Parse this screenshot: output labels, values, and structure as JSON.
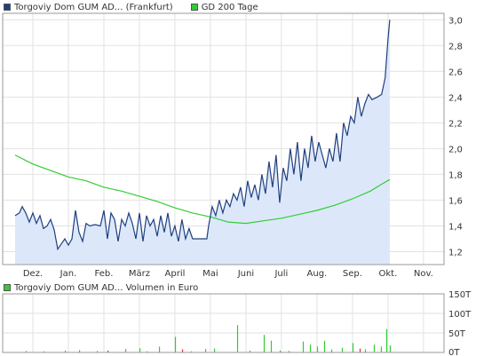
{
  "chart_data": [
    {
      "type": "area",
      "legend": [
        {
          "label": "Torgoviy Dom GUM AD... (Frankfurt)",
          "color": "#1f3f7f"
        },
        {
          "label": "GD 200 Tage",
          "color": "#33cc33"
        }
      ],
      "x_ticks": [
        "Dez.",
        "Jan.",
        "Feb.",
        "März",
        "April",
        "Mai",
        "Juni",
        "Juli",
        "Aug.",
        "Sep.",
        "Okt.",
        "Nov."
      ],
      "y_ticks": [
        "3,0",
        "2,8",
        "2,6",
        "2,4",
        "2,2",
        "2,0",
        "1,8",
        "1,6",
        "1,4",
        "1,2"
      ],
      "ylim": [
        1.1,
        3.05
      ],
      "grid": true,
      "price_color": "#1f3f7f",
      "fill_color": "#dce8fa",
      "avg_color": "#33cc33",
      "series": [
        {
          "name": "Torgoviy Dom GUM AD... (Frankfurt)",
          "points": [
            [
              0,
              1.48
            ],
            [
              0.12,
              1.5
            ],
            [
              0.2,
              1.55
            ],
            [
              0.3,
              1.5
            ],
            [
              0.4,
              1.43
            ],
            [
              0.5,
              1.5
            ],
            [
              0.6,
              1.42
            ],
            [
              0.7,
              1.48
            ],
            [
              0.8,
              1.38
            ],
            [
              0.9,
              1.4
            ],
            [
              1.0,
              1.45
            ],
            [
              1.1,
              1.37
            ],
            [
              1.2,
              1.22
            ],
            [
              1.3,
              1.26
            ],
            [
              1.4,
              1.3
            ],
            [
              1.5,
              1.25
            ],
            [
              1.6,
              1.3
            ],
            [
              1.7,
              1.52
            ],
            [
              1.8,
              1.35
            ],
            [
              1.9,
              1.28
            ],
            [
              2.0,
              1.42
            ],
            [
              2.1,
              1.4
            ],
            [
              2.25,
              1.41
            ],
            [
              2.4,
              1.4
            ],
            [
              2.5,
              1.52
            ],
            [
              2.6,
              1.3
            ],
            [
              2.7,
              1.5
            ],
            [
              2.8,
              1.45
            ],
            [
              2.9,
              1.28
            ],
            [
              3.0,
              1.45
            ],
            [
              3.1,
              1.4
            ],
            [
              3.2,
              1.5
            ],
            [
              3.3,
              1.42
            ],
            [
              3.4,
              1.3
            ],
            [
              3.5,
              1.5
            ],
            [
              3.6,
              1.28
            ],
            [
              3.7,
              1.48
            ],
            [
              3.8,
              1.4
            ],
            [
              3.9,
              1.45
            ],
            [
              4.0,
              1.32
            ],
            [
              4.1,
              1.48
            ],
            [
              4.2,
              1.35
            ],
            [
              4.3,
              1.5
            ],
            [
              4.4,
              1.32
            ],
            [
              4.5,
              1.4
            ],
            [
              4.6,
              1.28
            ],
            [
              4.7,
              1.45
            ],
            [
              4.8,
              1.3
            ],
            [
              4.9,
              1.38
            ],
            [
              5.0,
              1.3
            ],
            [
              5.2,
              1.3
            ],
            [
              5.4,
              1.3
            ],
            [
              5.45,
              1.4
            ],
            [
              5.55,
              1.55
            ],
            [
              5.65,
              1.48
            ],
            [
              5.75,
              1.6
            ],
            [
              5.85,
              1.5
            ],
            [
              5.95,
              1.6
            ],
            [
              6.05,
              1.55
            ],
            [
              6.15,
              1.65
            ],
            [
              6.25,
              1.6
            ],
            [
              6.35,
              1.7
            ],
            [
              6.45,
              1.55
            ],
            [
              6.55,
              1.75
            ],
            [
              6.65,
              1.62
            ],
            [
              6.75,
              1.72
            ],
            [
              6.85,
              1.6
            ],
            [
              6.95,
              1.8
            ],
            [
              7.05,
              1.65
            ],
            [
              7.15,
              1.9
            ],
            [
              7.25,
              1.7
            ],
            [
              7.35,
              1.95
            ],
            [
              7.45,
              1.58
            ],
            [
              7.55,
              1.85
            ],
            [
              7.65,
              1.75
            ],
            [
              7.75,
              2.0
            ],
            [
              7.85,
              1.8
            ],
            [
              7.95,
              2.05
            ],
            [
              8.05,
              1.75
            ],
            [
              8.15,
              2.0
            ],
            [
              8.25,
              1.85
            ],
            [
              8.35,
              2.1
            ],
            [
              8.45,
              1.9
            ],
            [
              8.55,
              2.05
            ],
            [
              8.65,
              1.95
            ],
            [
              8.75,
              1.85
            ],
            [
              8.85,
              2.0
            ],
            [
              8.95,
              1.9
            ],
            [
              9.05,
              2.12
            ],
            [
              9.15,
              1.9
            ],
            [
              9.25,
              2.2
            ],
            [
              9.35,
              2.1
            ],
            [
              9.45,
              2.25
            ],
            [
              9.55,
              2.2
            ],
            [
              9.65,
              2.4
            ],
            [
              9.75,
              2.25
            ],
            [
              9.85,
              2.35
            ],
            [
              9.95,
              2.42
            ],
            [
              10.05,
              2.38
            ],
            [
              10.2,
              2.4
            ],
            [
              10.32,
              2.42
            ],
            [
              10.42,
              2.55
            ],
            [
              10.5,
              2.85
            ],
            [
              10.55,
              3.0
            ]
          ]
        },
        {
          "name": "GD 200 Tage",
          "points": [
            [
              0,
              1.95
            ],
            [
              0.5,
              1.88
            ],
            [
              1.0,
              1.83
            ],
            [
              1.5,
              1.78
            ],
            [
              2.0,
              1.75
            ],
            [
              2.5,
              1.7
            ],
            [
              3.0,
              1.67
            ],
            [
              3.5,
              1.63
            ],
            [
              4.0,
              1.59
            ],
            [
              4.5,
              1.54
            ],
            [
              5.0,
              1.5
            ],
            [
              5.5,
              1.47
            ],
            [
              6.0,
              1.43
            ],
            [
              6.5,
              1.42
            ],
            [
              7.0,
              1.44
            ],
            [
              7.5,
              1.46
            ],
            [
              8.0,
              1.49
            ],
            [
              8.5,
              1.52
            ],
            [
              9.0,
              1.56
            ],
            [
              9.5,
              1.61
            ],
            [
              10.0,
              1.67
            ],
            [
              10.3,
              1.72
            ],
            [
              10.55,
              1.76
            ]
          ]
        }
      ]
    },
    {
      "type": "bar",
      "legend": [
        {
          "label": "Torgoviy Dom GUM AD... Volumen in Euro",
          "color": "#33cc33"
        }
      ],
      "y_ticks": [
        "150T",
        "100T",
        "50T",
        "0T"
      ],
      "ylim": [
        0,
        150
      ],
      "grid": true,
      "bar_color": "#33cc33",
      "alt_bar_color": "#dd3333",
      "values": [
        [
          0.3,
          4,
          0
        ],
        [
          0.8,
          3,
          0
        ],
        [
          1.4,
          5,
          0
        ],
        [
          1.8,
          6,
          0
        ],
        [
          2.3,
          4,
          0
        ],
        [
          2.6,
          5,
          1
        ],
        [
          3.1,
          9,
          0
        ],
        [
          3.5,
          11,
          0
        ],
        [
          3.7,
          3,
          0
        ],
        [
          4.05,
          15,
          0
        ],
        [
          4.5,
          40,
          0
        ],
        [
          4.7,
          8,
          1
        ],
        [
          4.95,
          3,
          0
        ],
        [
          5.35,
          9,
          0
        ],
        [
          5.6,
          10,
          0
        ],
        [
          6.25,
          70,
          0
        ],
        [
          6.6,
          5,
          0
        ],
        [
          7.0,
          45,
          0
        ],
        [
          7.2,
          30,
          0
        ],
        [
          7.45,
          5,
          0
        ],
        [
          7.7,
          4,
          0
        ],
        [
          8.1,
          28,
          0
        ],
        [
          8.3,
          20,
          0
        ],
        [
          8.5,
          15,
          0
        ],
        [
          8.7,
          30,
          0
        ],
        [
          8.9,
          8,
          0
        ],
        [
          9.2,
          12,
          0
        ],
        [
          9.5,
          24,
          0
        ],
        [
          9.7,
          10,
          1
        ],
        [
          9.85,
          8,
          0
        ],
        [
          10.1,
          20,
          0
        ],
        [
          10.3,
          15,
          0
        ],
        [
          10.45,
          60,
          0
        ],
        [
          10.55,
          18,
          0
        ]
      ]
    }
  ]
}
